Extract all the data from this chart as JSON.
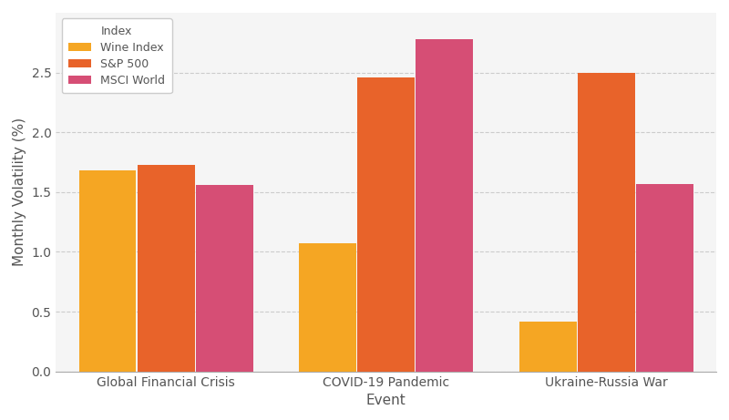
{
  "xlabel": "Event",
  "ylabel": "Monthly Volatility (%)",
  "categories": [
    "Global Financial Crisis",
    "COVID-19 Pandemic",
    "Ukraine-Russia War"
  ],
  "series": [
    {
      "label": "Wine Index",
      "color": "#F5A623",
      "values": [
        1.68,
        1.07,
        0.42
      ]
    },
    {
      "label": "S&P 500",
      "color": "#E8632A",
      "values": [
        1.73,
        2.46,
        2.5
      ]
    },
    {
      "label": "MSCI World",
      "color": "#D64E75",
      "values": [
        1.56,
        2.78,
        1.57
      ]
    }
  ],
  "legend_title": "Index",
  "ylim": [
    0,
    3.0
  ],
  "yticks": [
    0.0,
    0.5,
    1.0,
    1.5,
    2.0,
    2.5
  ],
  "fig_background_color": "#FFFFFF",
  "plot_background_color": "#F5F5F5",
  "grid_color": "#CCCCCC",
  "bar_width": 0.26,
  "bar_spacing": 0.005,
  "group_padding": 0.38
}
